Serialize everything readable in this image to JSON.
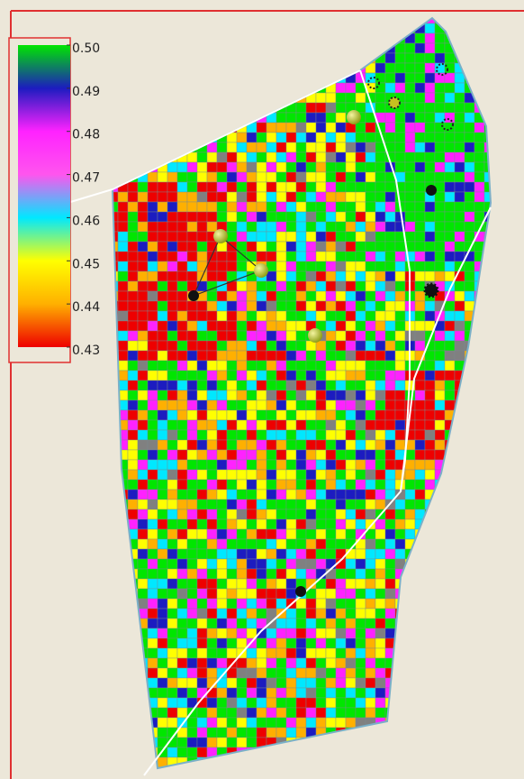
{
  "legend": {
    "ticks": [
      {
        "value": 0.5,
        "label": "0.50",
        "color": "#00e600"
      },
      {
        "value": 0.49,
        "label": "0.49",
        "color": "#1c1cc0"
      },
      {
        "value": 0.48,
        "label": "0.48",
        "color": "#ff22ff"
      },
      {
        "value": 0.47,
        "label": "0.47",
        "color": "#ff55ee"
      },
      {
        "value": 0.46,
        "label": "0.46",
        "color": "#00e8ff"
      },
      {
        "value": 0.45,
        "label": "0.45",
        "color": "#ffff00"
      },
      {
        "value": 0.44,
        "label": "0.44",
        "color": "#ffb000"
      },
      {
        "value": 0.43,
        "label": "0.43",
        "color": "#ee0000"
      }
    ]
  }
}
